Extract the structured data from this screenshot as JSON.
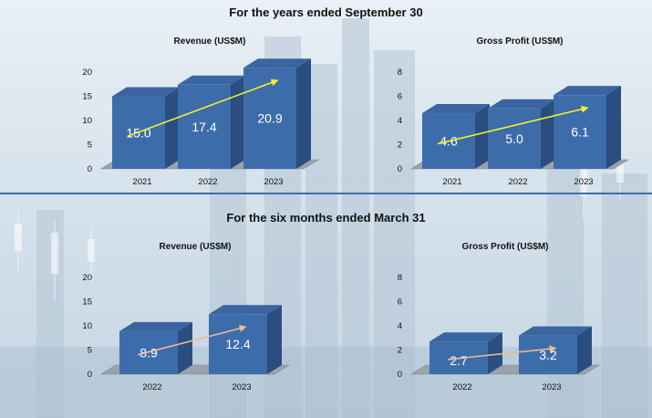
{
  "sections": [
    {
      "title": "For the years ended September 30"
    },
    {
      "title": "For the six months ended March 31"
    }
  ],
  "colors": {
    "bar_front": "#3d6cab",
    "bar_top": "#3a65a0",
    "bar_side": "#2a4e80",
    "floor": "#9aa3ad",
    "arrow_annual": "#f2f22a",
    "arrow_interim": "#f2b894",
    "divider": "#3d6fa8"
  },
  "chart_data": [
    {
      "type": "bar",
      "title": "Revenue (US$M)",
      "categories": [
        "2021",
        "2022",
        "2023"
      ],
      "values": [
        15.0,
        17.4,
        20.9
      ],
      "value_labels": [
        "15.0",
        "17.4",
        "20.9"
      ],
      "ylim": [
        0,
        20
      ],
      "yticks": [
        "0",
        "5",
        "10",
        "15",
        "20"
      ],
      "trend_arrow": "yellow",
      "style": "3d"
    },
    {
      "type": "bar",
      "title": "Gross Profit (US$M)",
      "categories": [
        "2021",
        "2022",
        "2023"
      ],
      "values": [
        4.6,
        5.0,
        6.1
      ],
      "value_labels": [
        "4.6",
        "5.0",
        "6.1"
      ],
      "ylim": [
        0,
        8
      ],
      "yticks": [
        "0",
        "2",
        "4",
        "6",
        "8"
      ],
      "trend_arrow": "yellow",
      "style": "3d"
    },
    {
      "type": "bar",
      "title": "Revenue (US$M)",
      "categories": [
        "2022",
        "2023"
      ],
      "values": [
        8.9,
        12.4
      ],
      "value_labels": [
        "8.9",
        "12.4"
      ],
      "ylim": [
        0,
        20
      ],
      "yticks": [
        "0",
        "5",
        "10",
        "15",
        "20"
      ],
      "trend_arrow": "peach",
      "style": "3d"
    },
    {
      "type": "bar",
      "title": "Gross Profit (US$M)",
      "categories": [
        "2022",
        "2023"
      ],
      "values": [
        2.7,
        3.2
      ],
      "value_labels": [
        "2.7",
        "3.2"
      ],
      "ylim": [
        0,
        8
      ],
      "yticks": [
        "0",
        "2",
        "4",
        "6",
        "8"
      ],
      "trend_arrow": "peach",
      "style": "3d"
    }
  ]
}
